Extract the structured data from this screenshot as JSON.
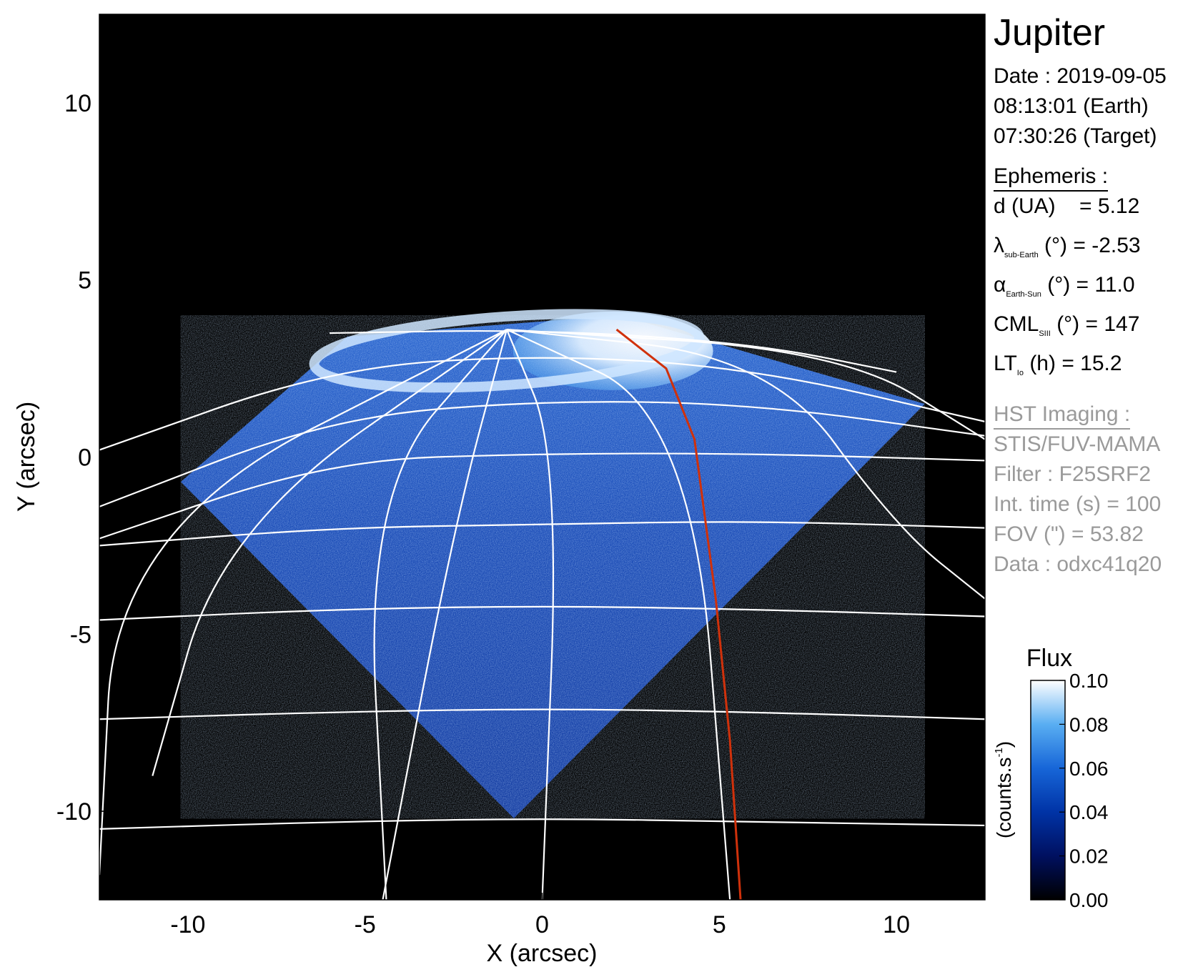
{
  "chart_data": {
    "type": "heatmap",
    "xlabel": "X (arcsec)",
    "ylabel": "Y (arcsec)",
    "xlim": [
      -12.5,
      12.5
    ],
    "ylim": [
      -12.5,
      12.5
    ],
    "xticks": [
      "-10",
      "-5",
      "0",
      "5",
      "10"
    ],
    "yticks": [
      "10",
      "5",
      "0",
      "-5",
      "-10"
    ],
    "grid": "planetographic latitude/longitude grid overlaid in white",
    "observed_region_vertices": [
      [
        -10.2,
        -0.7
      ],
      [
        -0.8,
        -10.2
      ],
      [
        10.8,
        1.5
      ],
      [
        2.2,
        4.0
      ],
      [
        -5.5,
        3.4
      ]
    ],
    "red_curve": [
      [
        2.1,
        3.6
      ],
      [
        3.5,
        2.5
      ],
      [
        4.3,
        0.5
      ],
      [
        4.9,
        -4.0
      ],
      [
        5.3,
        -8.0
      ],
      [
        5.6,
        -12.5
      ]
    ],
    "colorbar": {
      "title": "Flux",
      "label": "(counts.s",
      "label_sup": "-1",
      "label_end": ")",
      "range": [
        0.0,
        0.1
      ],
      "ticks": [
        "0.10",
        "0.08",
        "0.06",
        "0.04",
        "0.02",
        "0.00"
      ],
      "colormap": [
        "#000000",
        "#001060",
        "#0033a6",
        "#1766d8",
        "#59aef2",
        "#ffffff"
      ]
    }
  },
  "panel": {
    "title": "Jupiter",
    "date_line": "Date : 2019-09-05",
    "earth_time": "08:13:01 (Earth)",
    "target_time": "07:30:26 (Target)",
    "ephemeris_header": "Ephemeris :",
    "ephemeris": [
      {
        "name": "d (UA)",
        "sub": "",
        "post": "",
        "value": "= 5.12"
      },
      {
        "name": "λ",
        "sub": "sub-Earth",
        "post": " (°)",
        "value": "= -2.53"
      },
      {
        "name": "α",
        "sub": "Earth-Sun",
        "post": " (°)",
        "value": "= 11.0"
      },
      {
        "name": "CML",
        "sub": "SIII",
        "post": " (°)",
        "value": "= 147"
      },
      {
        "name": "LT",
        "sub": "Io",
        "post": " (h)",
        "value": "= 15.2"
      }
    ],
    "hst_header": "HST Imaging :",
    "hst": [
      "STIS/FUV-MAMA",
      "Filter : F25SRF2",
      "Int. time (s) = 100",
      "FOV (\") = 53.82",
      "Data : odxc41q20"
    ]
  },
  "colors": {
    "background": "#000000",
    "grid_lines": "#ffffff",
    "red_curve": "#d0310b",
    "muted_text": "#9a9a9a"
  }
}
